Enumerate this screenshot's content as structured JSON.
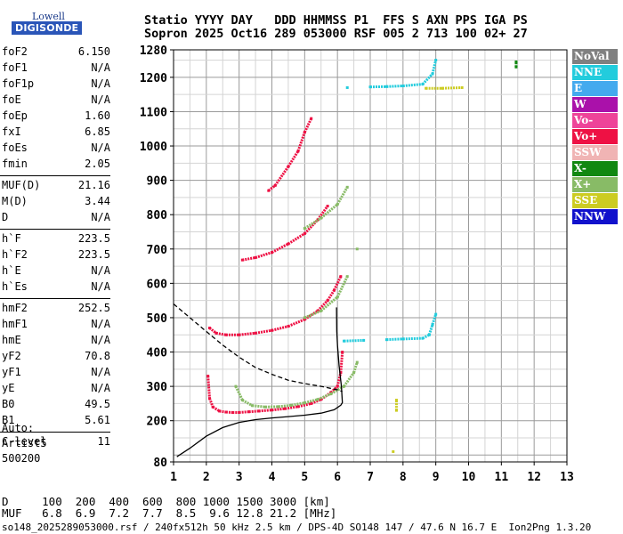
{
  "logo": {
    "line1": "Lowell",
    "line2": "DIGISONDE"
  },
  "header": {
    "line1": "Statio YYYY DAY   DDD HHMMSS P1  FFS S AXN PPS IGA PS",
    "line2": "Sopron 2025 Oct16 289 053000 RSF 005 2 713 100 02+ 27"
  },
  "params_group1": [
    {
      "label": "foF2",
      "value": "6.150"
    },
    {
      "label": "foF1",
      "value": "N/A"
    },
    {
      "label": "foF1p",
      "value": "N/A"
    },
    {
      "label": "foE",
      "value": "N/A"
    },
    {
      "label": "foEp",
      "value": "1.60"
    },
    {
      "label": "fxI",
      "value": "6.85"
    },
    {
      "label": "foEs",
      "value": "N/A"
    },
    {
      "label": "fmin",
      "value": "2.05"
    }
  ],
  "params_group2": [
    {
      "label": "MUF(D)",
      "value": "21.16"
    },
    {
      "label": "M(D)",
      "value": "3.44"
    },
    {
      "label": "D",
      "value": "N/A"
    }
  ],
  "params_group3": [
    {
      "label": "h`F",
      "value": "223.5"
    },
    {
      "label": "h`F2",
      "value": "223.5"
    },
    {
      "label": "h`E",
      "value": "N/A"
    },
    {
      "label": "h`Es",
      "value": "N/A"
    }
  ],
  "params_group4": [
    {
      "label": "hmF2",
      "value": "252.5"
    },
    {
      "label": "hmF1",
      "value": "N/A"
    },
    {
      "label": "hmE",
      "value": "N/A"
    },
    {
      "label": "yF2",
      "value": "70.8"
    },
    {
      "label": "yF1",
      "value": "N/A"
    },
    {
      "label": "yE",
      "value": "N/A"
    },
    {
      "label": "B0",
      "value": "49.5"
    },
    {
      "label": "B1",
      "value": "5.61"
    }
  ],
  "params_group5": [
    {
      "label": "C-level",
      "value": "11"
    }
  ],
  "auto": {
    "line1": "Auto:",
    "line2": "Artist5",
    "line3": "500200"
  },
  "legend": [
    {
      "label": "NoVal",
      "color": "#808080"
    },
    {
      "label": "NNE",
      "color": "#22ccdd"
    },
    {
      "label": "E",
      "color": "#44aaee"
    },
    {
      "label": "W",
      "color": "#aa11aa"
    },
    {
      "label": "Vo-",
      "color": "#ee4499"
    },
    {
      "label": "Vo+",
      "color": "#ee1144"
    },
    {
      "label": "SSW",
      "color": "#f0b4b4"
    },
    {
      "label": "X-",
      "color": "#118811"
    },
    {
      "label": "X+",
      "color": "#88bb66"
    },
    {
      "label": "SSE",
      "color": "#cccc22"
    },
    {
      "label": "NNW",
      "color": "#1111cc"
    }
  ],
  "muf_table": {
    "row1": "D     100  200  400  600  800 1000 1500 3000 [km]",
    "row2": "MUF   6.8  6.9  7.2  7.7  8.5  9.6 12.8 21.2 [MHz]"
  },
  "footer": "so148_2025289053000.rsf / 240fx512h 50 kHz 2.5 km / DPS-4D SO148 147 / 47.6 N 16.7 E  Ion2Png 1.3.20",
  "chart_data": {
    "type": "scatter",
    "title": "",
    "xlabel": "",
    "ylabel": "",
    "xlim": [
      1,
      13
    ],
    "ylim": [
      80,
      1280
    ],
    "x_ticks": [
      1,
      2,
      3,
      4,
      5,
      6,
      7,
      8,
      9,
      10,
      11,
      12,
      13
    ],
    "y_ticks": [
      80,
      200,
      300,
      400,
      500,
      600,
      700,
      800,
      900,
      1000,
      1100,
      1200,
      1280
    ],
    "grid": true,
    "series": [
      {
        "name": "Vo+",
        "color": "#ee1144",
        "points": [
          [
            2.05,
            330
          ],
          [
            2.1,
            265
          ],
          [
            2.2,
            240
          ],
          [
            2.4,
            228
          ],
          [
            2.6,
            225
          ],
          [
            2.8,
            224
          ],
          [
            3.0,
            224
          ],
          [
            3.3,
            226
          ],
          [
            3.6,
            228
          ],
          [
            4.0,
            231
          ],
          [
            4.4,
            235
          ],
          [
            4.8,
            241
          ],
          [
            5.2,
            250
          ],
          [
            5.5,
            262
          ],
          [
            5.8,
            282
          ],
          [
            6.0,
            300
          ],
          [
            6.1,
            340
          ],
          [
            6.15,
            400
          ],
          [
            2.1,
            470
          ],
          [
            2.3,
            455
          ],
          [
            2.6,
            450
          ],
          [
            3.0,
            450
          ],
          [
            3.5,
            455
          ],
          [
            4.0,
            463
          ],
          [
            4.5,
            475
          ],
          [
            5.0,
            495
          ],
          [
            5.4,
            520
          ],
          [
            5.7,
            550
          ],
          [
            5.9,
            580
          ],
          [
            6.1,
            620
          ],
          [
            3.1,
            668
          ],
          [
            3.5,
            675
          ],
          [
            4.0,
            690
          ],
          [
            4.5,
            715
          ],
          [
            5.0,
            745
          ],
          [
            5.4,
            785
          ],
          [
            5.7,
            825
          ],
          [
            3.9,
            870
          ],
          [
            4.1,
            885
          ],
          [
            4.5,
            940
          ],
          [
            4.8,
            985
          ],
          [
            5.0,
            1040
          ],
          [
            5.2,
            1080
          ]
        ]
      },
      {
        "name": "X+",
        "color": "#88bb66",
        "points": [
          [
            2.9,
            300
          ],
          [
            3.1,
            260
          ],
          [
            3.4,
            244
          ],
          [
            3.8,
            240
          ],
          [
            4.2,
            241
          ],
          [
            4.6,
            245
          ],
          [
            5.0,
            252
          ],
          [
            5.4,
            262
          ],
          [
            5.8,
            278
          ],
          [
            6.2,
            300
          ],
          [
            6.5,
            340
          ],
          [
            6.6,
            370
          ],
          [
            5.0,
            500
          ],
          [
            5.5,
            520
          ],
          [
            6.0,
            560
          ],
          [
            6.3,
            620
          ],
          [
            6.6,
            700
          ],
          [
            5.0,
            760
          ],
          [
            5.5,
            790
          ],
          [
            6.0,
            830
          ],
          [
            6.3,
            880
          ]
        ]
      },
      {
        "name": "NNE",
        "color": "#22ccdd",
        "points": [
          [
            6.2,
            432
          ],
          [
            6.8,
            434
          ],
          [
            7.5,
            436
          ],
          [
            8.0,
            438
          ],
          [
            8.6,
            440
          ],
          [
            8.8,
            450
          ],
          [
            8.9,
            480
          ],
          [
            9.0,
            510
          ],
          [
            6.3,
            1170
          ],
          [
            7.0,
            1172
          ],
          [
            7.5,
            1173
          ],
          [
            8.0,
            1175
          ],
          [
            8.6,
            1180
          ],
          [
            8.9,
            1210
          ],
          [
            9.0,
            1250
          ]
        ]
      },
      {
        "name": "SSE",
        "color": "#cccc22",
        "points": [
          [
            8.7,
            1168
          ],
          [
            9.2,
            1168
          ],
          [
            9.8,
            1170
          ],
          [
            7.8,
            230
          ],
          [
            7.8,
            260
          ],
          [
            7.7,
            110
          ]
        ]
      },
      {
        "name": "X-",
        "color": "#118811",
        "points": [
          [
            11.45,
            1230
          ],
          [
            11.45,
            1245
          ]
        ]
      }
    ],
    "curves": [
      {
        "name": "profile",
        "points": [
          [
            1.1,
            95
          ],
          [
            1.5,
            120
          ],
          [
            2.0,
            155
          ],
          [
            2.5,
            180
          ],
          [
            3.0,
            195
          ],
          [
            3.5,
            203
          ],
          [
            4.0,
            208
          ],
          [
            4.5,
            212
          ],
          [
            5.0,
            216
          ],
          [
            5.5,
            222
          ],
          [
            5.9,
            232
          ],
          [
            6.1,
            245
          ],
          [
            6.15,
            252.5
          ],
          [
            6.12,
            300
          ],
          [
            6.05,
            360
          ],
          [
            6.0,
            420
          ],
          [
            5.98,
            460
          ],
          [
            5.97,
            530
          ]
        ],
        "style": "solid"
      },
      {
        "name": "muf-curve",
        "points": [
          [
            1.0,
            540
          ],
          [
            1.5,
            500
          ],
          [
            2.0,
            460
          ],
          [
            2.5,
            420
          ],
          [
            3.0,
            385
          ],
          [
            3.5,
            355
          ],
          [
            4.0,
            335
          ],
          [
            4.5,
            318
          ],
          [
            5.0,
            308
          ],
          [
            5.5,
            300
          ],
          [
            6.0,
            290
          ],
          [
            6.15,
            285
          ]
        ],
        "style": "dashed"
      }
    ]
  }
}
